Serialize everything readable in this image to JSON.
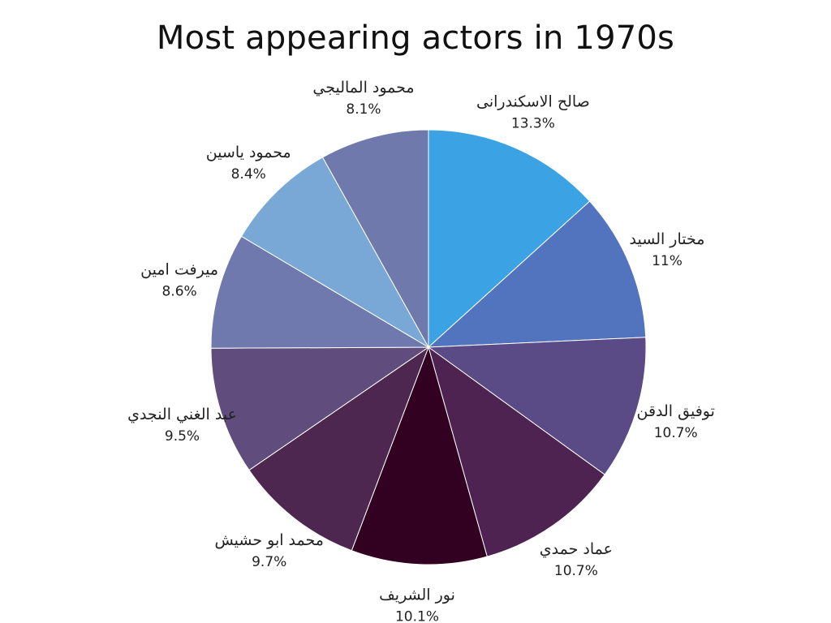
{
  "chart_data": {
    "type": "pie",
    "title": "Most appearing actors in 1970s",
    "slices": [
      {
        "label": "صالح الاسكندرانى",
        "value": 13.3,
        "display": "13.3%",
        "color": "#3ba3e3"
      },
      {
        "label": "مختار السيد",
        "value": 11,
        "display": "11%",
        "color": "#5273bd"
      },
      {
        "label": "توفيق الدقن",
        "value": 10.7,
        "display": "10.7%",
        "color": "#5a4a86"
      },
      {
        "label": "عماد حمدي",
        "value": 10.7,
        "display": "10.7%",
        "color": "#4e2351"
      },
      {
        "label": "نور الشريف",
        "value": 10.1,
        "display": "10.1%",
        "color": "#320020"
      },
      {
        "label": "محمد ابو حشيش",
        "value": 9.7,
        "display": "9.7%",
        "color": "#4e2750"
      },
      {
        "label": "عبد الغني النجدي",
        "value": 9.5,
        "display": "9.5%",
        "color": "#604d7e"
      },
      {
        "label": "ميرفت امين",
        "value": 8.6,
        "display": "8.6%",
        "color": "#6f79ae"
      },
      {
        "label": "محمود ياسين",
        "value": 8.4,
        "display": "8.4%",
        "color": "#7aa8d6"
      },
      {
        "label": "محمود المالیجي",
        "value": 8.1,
        "display": "8.1%",
        "color": "#6f79ac"
      }
    ]
  }
}
